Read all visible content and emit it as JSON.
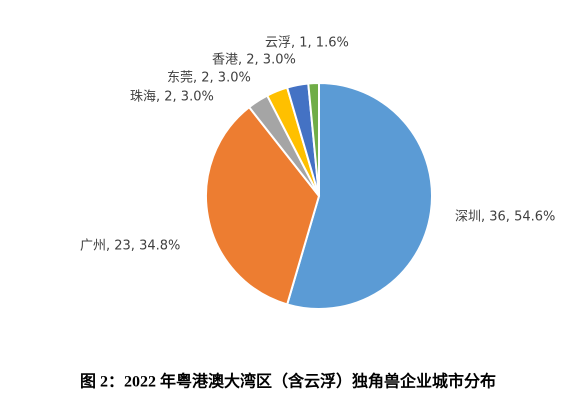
{
  "chart_data": {
    "type": "pie",
    "categories": [
      "深圳",
      "广州",
      "珠海",
      "东莞",
      "香港",
      "云浮"
    ],
    "values": [
      36,
      23,
      2,
      2,
      2,
      1
    ],
    "value_labels": [
      "深圳, 36, 54.6%",
      "广州, 23, 34.8%",
      "珠海, 2, 3.0%",
      "东莞, 2, 3.0%",
      "香港, 2, 3.0%",
      "云浮, 1, 1.6%"
    ],
    "colors": [
      "#5b9bd5",
      "#ed7d31",
      "#a5a5a5",
      "#ffc000",
      "#4472c4",
      "#70ad47"
    ],
    "caption": "图 2：2022 年粤港澳大湾区（含云浮）独角兽企业城市分布"
  }
}
